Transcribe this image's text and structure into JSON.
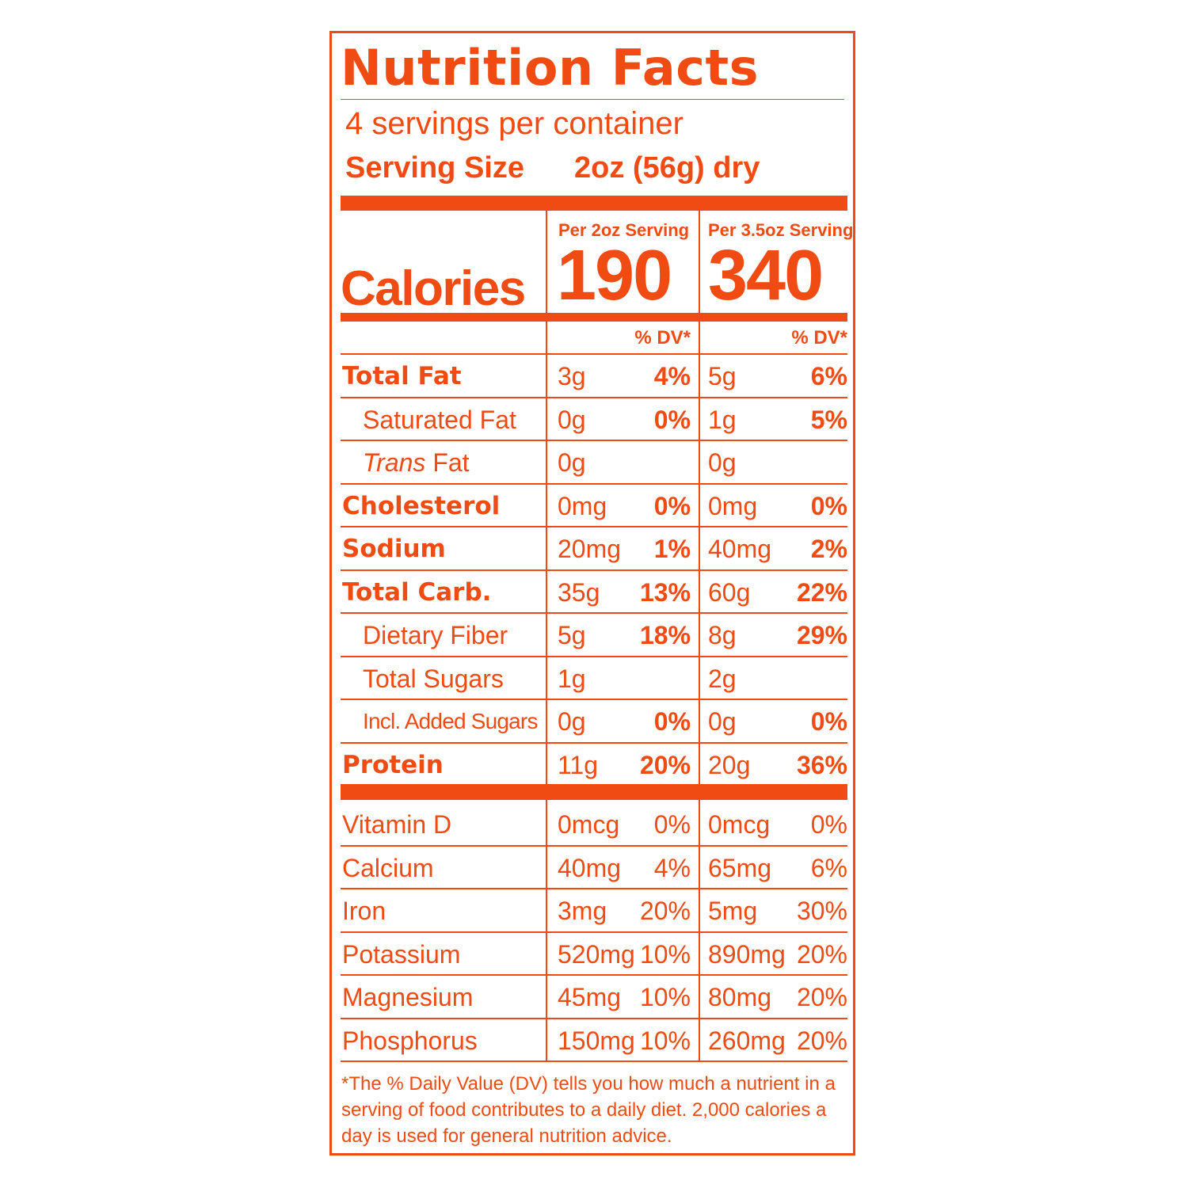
{
  "label": {
    "title": "Nutrition Facts",
    "servings_per_container": "4 servings per container",
    "serving_size_label": "Serving Size",
    "serving_size_value": "2oz (56g) dry",
    "calories_label": "Calories",
    "columns": [
      {
        "header": "Per 2oz Serving",
        "calories": "190",
        "dv_header": "% DV*"
      },
      {
        "header": "Per 3.5oz Serving",
        "calories": "340",
        "dv_header": "% DV*"
      }
    ],
    "nutrients": [
      {
        "name": "Total Fat",
        "a": "3g",
        "ap": "4%",
        "b": "5g",
        "bp": "6%"
      },
      {
        "name": "Saturated Fat",
        "a": "0g",
        "ap": "0%",
        "b": "1g",
        "bp": "5%"
      },
      {
        "name_italic": "Trans",
        "name_rest": " Fat",
        "a": "0g",
        "ap": "",
        "b": "0g",
        "bp": ""
      },
      {
        "name": "Cholesterol",
        "a": "0mg",
        "ap": "0%",
        "b": "0mg",
        "bp": "0%"
      },
      {
        "name": "Sodium",
        "a": "20mg",
        "ap": "1%",
        "b": "40mg",
        "bp": "2%"
      },
      {
        "name": "Total Carb.",
        "a": "35g",
        "ap": "13%",
        "b": "60g",
        "bp": "22%"
      },
      {
        "name": "Dietary Fiber",
        "a": "5g",
        "ap": "18%",
        "b": "8g",
        "bp": "29%"
      },
      {
        "name": "Total Sugars",
        "a": "1g",
        "ap": "",
        "b": "2g",
        "bp": ""
      },
      {
        "name": "Incl. Added Sugars",
        "a": "0g",
        "ap": "0%",
        "b": "0g",
        "bp": "0%"
      },
      {
        "name": "Protein",
        "a": "11g",
        "ap": "20%",
        "b": "20g",
        "bp": "36%"
      }
    ],
    "vitamins": [
      {
        "name": "Vitamin D",
        "a": "0mcg",
        "ap": "0%",
        "b": "0mcg",
        "bp": "0%"
      },
      {
        "name": "Calcium",
        "a": "40mg",
        "ap": "4%",
        "b": "65mg",
        "bp": "6%"
      },
      {
        "name": "Iron",
        "a": "3mg",
        "ap": "20%",
        "b": "5mg",
        "bp": "30%"
      },
      {
        "name": "Potassium",
        "a": "520mg",
        "ap": "10%",
        "b": "890mg",
        "bp": "20%"
      },
      {
        "name": "Magnesium",
        "a": "45mg",
        "ap": "10%",
        "b": "80mg",
        "bp": "20%"
      },
      {
        "name": "Phosphorus",
        "a": "150mg",
        "ap": "10%",
        "b": "260mg",
        "bp": "20%"
      }
    ],
    "footnote": "*The % Daily Value (DV) tells you how much a nutrient in a serving of food contributes to a daily diet. 2,000 calories a day is used for general nutrition advice.",
    "accent_color": "#ef4b12"
  }
}
